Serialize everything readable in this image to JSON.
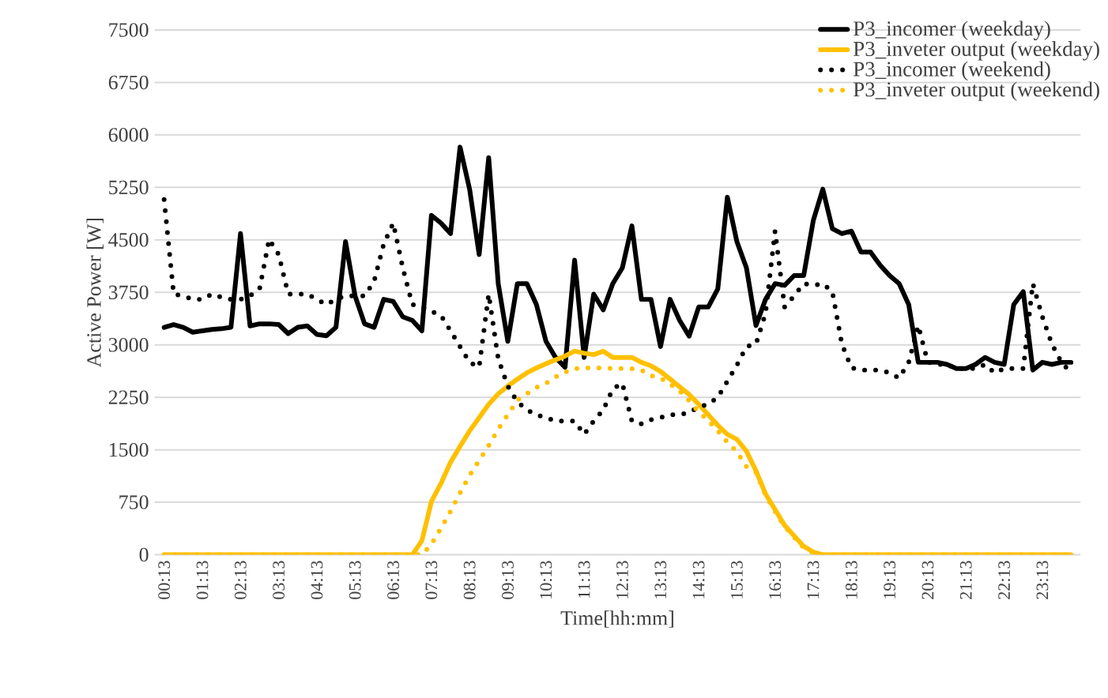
{
  "chart_data": {
    "type": "line",
    "xlabel": "Time[hh:mm]",
    "ylabel": "Active Power [W]",
    "categories": [
      "00:13",
      null,
      null,
      null,
      "01:13",
      null,
      null,
      null,
      "02:13",
      null,
      null,
      null,
      "03:13",
      null,
      null,
      null,
      "04:13",
      null,
      null,
      null,
      "05:13",
      null,
      null,
      null,
      "06:13",
      null,
      null,
      null,
      "07:13",
      null,
      null,
      null,
      "08:13",
      null,
      null,
      null,
      "09:13",
      null,
      null,
      null,
      "10:13",
      null,
      null,
      null,
      "11:13",
      null,
      null,
      null,
      "12:13",
      null,
      null,
      null,
      "13:13",
      null,
      null,
      null,
      "14:13",
      null,
      null,
      null,
      "15:13",
      null,
      null,
      null,
      "16:13",
      null,
      null,
      null,
      "17:13",
      null,
      null,
      null,
      "18:13",
      null,
      null,
      null,
      "19:13",
      null,
      null,
      null,
      "20:13",
      null,
      null,
      null,
      "21:13",
      null,
      null,
      null,
      "22:13",
      null,
      null,
      null,
      "23:13",
      null,
      null,
      null
    ],
    "ylim": [
      0,
      7500
    ],
    "yticks": [
      0,
      750,
      1500,
      2250,
      3000,
      3750,
      4500,
      5250,
      6000,
      6750,
      7500
    ],
    "grid": "y",
    "legend": "top right",
    "series": [
      {
        "name": "P3_incomer (weekday)",
        "color": "#000000",
        "line_style": "solid",
        "values": [
          3250,
          3290,
          3250,
          3180,
          3200,
          3220,
          3230,
          3250,
          4590,
          3270,
          3300,
          3300,
          3290,
          3160,
          3250,
          3270,
          3150,
          3130,
          3250,
          4475,
          3700,
          3300,
          3250,
          3650,
          3620,
          3400,
          3350,
          3200,
          4850,
          4740,
          4590,
          5825,
          5225,
          4290,
          5675,
          3875,
          3050,
          3875,
          3875,
          3575,
          3050,
          2820,
          2680,
          4210,
          2820,
          3725,
          3500,
          3875,
          4100,
          4700,
          3650,
          3650,
          2975,
          3650,
          3350,
          3125,
          3540,
          3540,
          3800,
          5110,
          4475,
          4100,
          3275,
          3650,
          3875,
          3850,
          3990,
          3990,
          4775,
          5225,
          4660,
          4590,
          4625,
          4325,
          4325,
          4140,
          3990,
          3875,
          3575,
          2750,
          2750,
          2750,
          2720,
          2660,
          2660,
          2720,
          2820,
          2750,
          2720,
          3575,
          3760,
          2640,
          2750,
          2720,
          2750,
          2750
        ]
      },
      {
        "name": "P3_inveter output (weekday)",
        "color": "#ffc000",
        "line_style": "solid",
        "values": [
          0,
          0,
          0,
          0,
          0,
          0,
          0,
          0,
          0,
          0,
          0,
          0,
          0,
          0,
          0,
          0,
          0,
          0,
          0,
          0,
          0,
          0,
          0,
          0,
          0,
          0,
          0,
          200,
          760,
          1020,
          1320,
          1550,
          1770,
          1960,
          2150,
          2300,
          2410,
          2510,
          2600,
          2670,
          2730,
          2785,
          2840,
          2910,
          2880,
          2860,
          2910,
          2820,
          2820,
          2820,
          2750,
          2700,
          2620,
          2510,
          2400,
          2290,
          2150,
          2000,
          1850,
          1720,
          1650,
          1480,
          1200,
          870,
          645,
          420,
          270,
          120,
          40,
          0,
          0,
          0,
          0,
          0,
          0,
          0,
          0,
          0,
          0,
          0,
          0,
          0,
          0,
          0,
          0,
          0,
          0,
          0,
          0,
          0,
          0,
          0,
          0,
          0,
          0,
          0
        ]
      },
      {
        "name": "P3_incomer (weekend)",
        "color": "#000000",
        "line_style": "dotted",
        "values": [
          5075,
          3725,
          3700,
          3650,
          3650,
          3725,
          3680,
          3650,
          3650,
          3700,
          3800,
          4510,
          4290,
          3725,
          3725,
          3725,
          3650,
          3575,
          3650,
          3700,
          3700,
          3700,
          3910,
          4440,
          4740,
          4100,
          3575,
          3540,
          3480,
          3420,
          3200,
          2975,
          2750,
          2680,
          3725,
          2800,
          2410,
          2185,
          2070,
          2000,
          1960,
          1910,
          1910,
          1910,
          1720,
          1910,
          2070,
          2370,
          2450,
          1910,
          1870,
          1930,
          1960,
          2000,
          2000,
          2035,
          2110,
          2150,
          2250,
          2480,
          2710,
          2975,
          3010,
          3450,
          4625,
          3540,
          3700,
          3875,
          3850,
          3875,
          3760,
          3010,
          2670,
          2640,
          2640,
          2640,
          2600,
          2525,
          2750,
          3275,
          2750,
          2720,
          2720,
          2660,
          2660,
          2660,
          2720,
          2600,
          2660,
          2660,
          2660,
          3875,
          3400,
          3010,
          2750,
          2600
        ]
      },
      {
        "name": "P3_inveter output (weekend)",
        "color": "#ffc000",
        "line_style": "dotted",
        "values": [
          0,
          0,
          0,
          0,
          0,
          0,
          0,
          0,
          0,
          0,
          0,
          0,
          0,
          0,
          0,
          0,
          0,
          0,
          0,
          0,
          0,
          0,
          0,
          0,
          0,
          0,
          0,
          0,
          150,
          380,
          620,
          885,
          1135,
          1345,
          1560,
          1795,
          2000,
          2210,
          2300,
          2390,
          2450,
          2540,
          2610,
          2660,
          2670,
          2670,
          2670,
          2660,
          2660,
          2660,
          2640,
          2560,
          2525,
          2440,
          2340,
          2200,
          2040,
          1920,
          1770,
          1610,
          1470,
          1260,
          1180,
          850,
          620,
          400,
          250,
          100,
          30,
          0,
          0,
          0,
          0,
          0,
          0,
          0,
          0,
          0,
          0,
          0,
          0,
          0,
          0,
          0,
          0,
          0,
          0,
          0,
          0,
          0,
          0,
          0,
          0,
          0,
          0,
          0
        ]
      }
    ]
  }
}
